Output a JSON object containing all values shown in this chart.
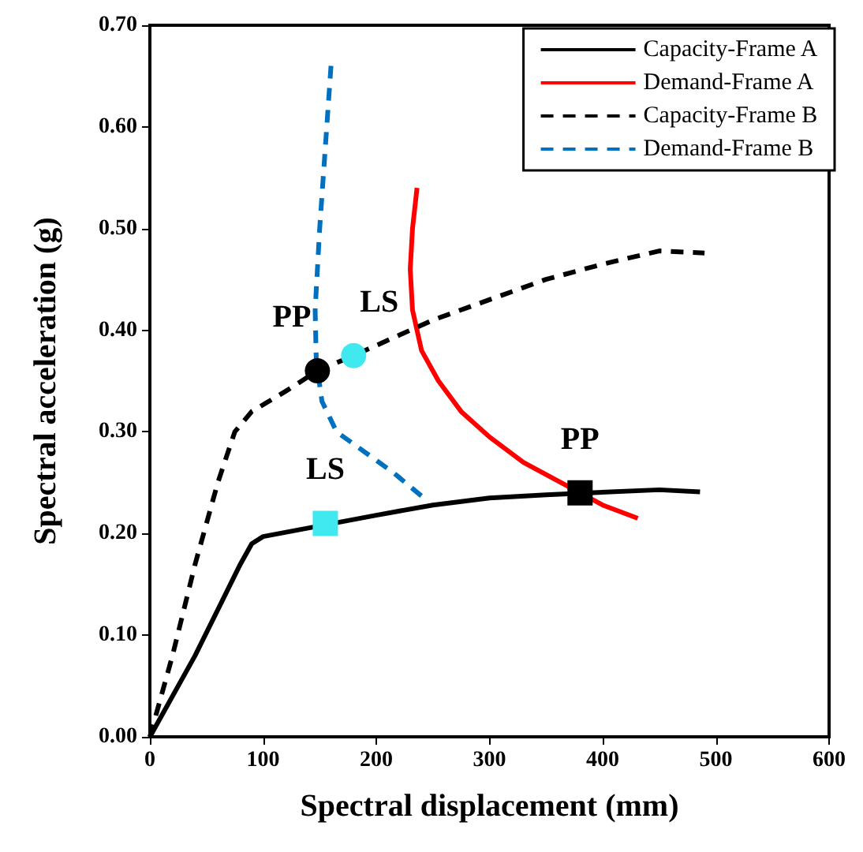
{
  "chart_data": {
    "type": "line",
    "xlabel": "Spectral displacement (mm)",
    "ylabel": "Spectral acceleration (g)",
    "xlim": [
      0,
      600
    ],
    "xticks": [
      0,
      100,
      200,
      300,
      400,
      500,
      600
    ],
    "ylim": [
      0,
      0.7
    ],
    "yticks": [
      {
        "value": 0,
        "label": "0.00"
      },
      {
        "value": 0.1,
        "label": "0.10"
      },
      {
        "value": 0.2,
        "label": "0.20"
      },
      {
        "value": 0.3,
        "label": "0.30"
      },
      {
        "value": 0.4,
        "label": "0.40"
      },
      {
        "value": 0.5,
        "label": "0.50"
      },
      {
        "value": 0.6,
        "label": "0.60"
      },
      {
        "value": 0.7,
        "label": "0.70"
      }
    ],
    "grid": false,
    "legend": "top right",
    "marker": "none",
    "series": [
      {
        "name": "Capacity-Frame A",
        "color": "#000000",
        "line_style": "solid",
        "x": [
          0,
          40,
          80,
          90,
          100,
          200,
          250,
          300,
          350,
          388,
          450,
          486
        ],
        "values": [
          0,
          0.08,
          0.17,
          0.19,
          0.197,
          0.218,
          0.228,
          0.235,
          0.238,
          0.24,
          0.243,
          0.241
        ]
      },
      {
        "name": "Demand-Frame A",
        "color": "#ff0000",
        "line_style": "solid",
        "x": [
          236,
          232,
          230,
          232,
          240,
          255,
          275,
          300,
          330,
          400,
          431
        ],
        "values": [
          0.54,
          0.5,
          0.46,
          0.42,
          0.38,
          0.35,
          0.32,
          0.295,
          0.27,
          0.228,
          0.215
        ]
      },
      {
        "name": "Capacity-Frame B",
        "color": "#000000",
        "line_style": "dashed",
        "x": [
          0,
          20,
          40,
          60,
          75,
          90,
          120,
          148,
          180,
          250,
          300,
          350,
          400,
          450,
          490
        ],
        "values": [
          0,
          0.08,
          0.17,
          0.25,
          0.3,
          0.32,
          0.34,
          0.36,
          0.375,
          0.41,
          0.43,
          0.45,
          0.465,
          0.478,
          0.476
        ]
      },
      {
        "name": "Demand-Frame B",
        "color": "#0070c0",
        "line_style": "dashed",
        "x": [
          160,
          155,
          150,
          146,
          147,
          152,
          165,
          190,
          215,
          242
        ],
        "values": [
          0.66,
          0.58,
          0.5,
          0.42,
          0.37,
          0.33,
          0.3,
          0.28,
          0.26,
          0.235
        ]
      },
      {
        "type": "scatter",
        "color": "#000000",
        "marker": "square",
        "x": [
          380
        ],
        "values": [
          0.24
        ]
      },
      {
        "type": "scatter",
        "color": "#40e8f0",
        "marker": "square",
        "x": [
          155
        ],
        "values": [
          0.21
        ]
      },
      {
        "type": "scatter",
        "color": "#000000",
        "marker": "circle",
        "x": [
          148
        ],
        "values": [
          0.36
        ]
      },
      {
        "type": "scatter",
        "color": "#40e8f0",
        "marker": "circle",
        "x": [
          180
        ],
        "values": [
          0.375
        ]
      }
    ],
    "annotations": [
      {
        "text": "PP",
        "x": 380,
        "y": 0.24
      },
      {
        "text": "LS",
        "x": 155,
        "y": 0.21
      },
      {
        "text": "PP",
        "x": 148,
        "y": 0.36
      },
      {
        "text": "LS",
        "x": 180,
        "y": 0.375
      }
    ]
  }
}
